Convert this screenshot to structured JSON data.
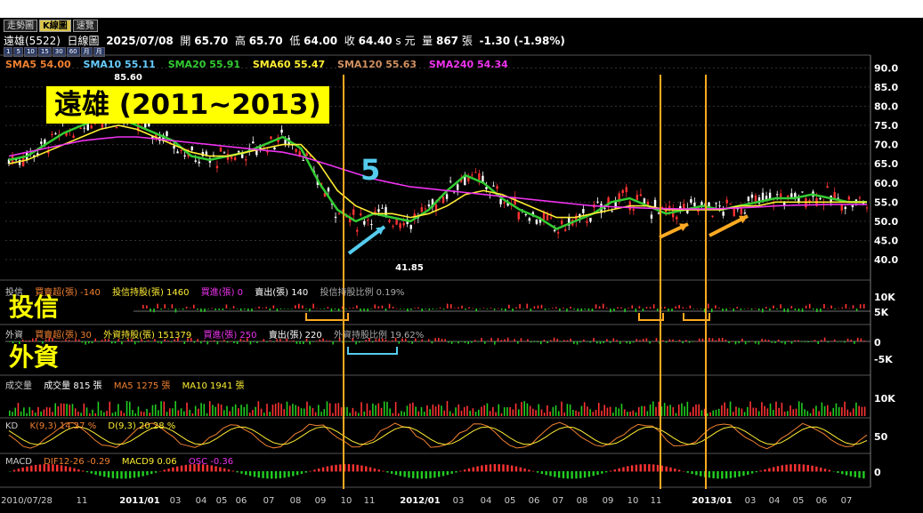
{
  "tabs": [
    {
      "label": "走勢圖",
      "active": false
    },
    {
      "label": "K線圖",
      "active": true
    },
    {
      "label": "速覽",
      "active": false
    }
  ],
  "periods": [
    "1",
    "5",
    "10",
    "15",
    "30",
    "60",
    "月",
    "月"
  ],
  "info": {
    "name": "遠雄(5522)",
    "chart": "日線圖",
    "date": "2025/07/08",
    "open_label": "開",
    "open": "65.70",
    "high_label": "高",
    "high": "65.70",
    "low_label": "低",
    "low": "64.00",
    "close_label": "收",
    "close": "64.40",
    "unit": "s 元",
    "vol_label": "量",
    "vol": "867",
    "vol_unit": "張",
    "change": "-1.30 (-1.98%)"
  },
  "overlay": {
    "title": "遠雄 (2011~2013)",
    "five": "5",
    "label_invest": "投信",
    "label_foreign": "外資"
  },
  "sma_legend": [
    {
      "text": "SMA5 54.00",
      "color": "#f08030"
    },
    {
      "text": "SMA10 55.11",
      "color": "#66ccff"
    },
    {
      "text": "SMA20 55.91",
      "color": "#33cc33"
    },
    {
      "text": "SMA60 55.47",
      "color": "#ffee33"
    },
    {
      "text": "SMA120 55.63",
      "color": "#d09060"
    },
    {
      "text": "SMA240 54.34",
      "color": "#ee33ee"
    }
  ],
  "invest_legend": [
    {
      "text": "投信",
      "color": "#ccc"
    },
    {
      "text": "買賣超(張) -140",
      "color": "#f08030"
    },
    {
      "text": "投信持股(張) 1460",
      "color": "#ffee33"
    },
    {
      "text": "買進(張) 0",
      "color": "#ee33ee"
    },
    {
      "text": "賣出(張) 140",
      "color": "#ffffff"
    },
    {
      "text": "投信持股比例 0.19%",
      "color": "#aaaaaa"
    }
  ],
  "foreign_legend": [
    {
      "text": "外資",
      "color": "#ccc"
    },
    {
      "text": "買賣超(張) 30",
      "color": "#f08030"
    },
    {
      "text": "外資持股(張) 151379",
      "color": "#ffee33"
    },
    {
      "text": "買進(張) 250",
      "color": "#ee33ee"
    },
    {
      "text": "賣出(張) 220",
      "color": "#ffffff"
    },
    {
      "text": "外資持股比例 19.62%",
      "color": "#aaaaaa"
    }
  ],
  "vol_legend": [
    {
      "text": "成交量",
      "color": "#ccc"
    },
    {
      "text": "成交量 815 張",
      "color": "#ffffff"
    },
    {
      "text": "MA5 1275 張",
      "color": "#f08030"
    },
    {
      "text": "MA10 1941 張",
      "color": "#ffee33"
    }
  ],
  "kd_legend": [
    {
      "text": "KD",
      "color": "#ccc"
    },
    {
      "text": "K(9,3) 14.27 %",
      "color": "#f08030"
    },
    {
      "text": "D(9,3) 20.28 %",
      "color": "#ffee33"
    }
  ],
  "macd_legend": [
    {
      "text": "MACD",
      "color": "#ccc"
    },
    {
      "text": "DIF12-26 -0.29",
      "color": "#f08030"
    },
    {
      "text": "MACD9 0.06",
      "color": "#ffee33"
    },
    {
      "text": "OSC -0.36",
      "color": "#ee33ee"
    }
  ],
  "chart_data": {
    "type": "line",
    "price_axis": {
      "ylim": [
        37,
        91
      ],
      "ticks": [
        "90.0",
        "85.0",
        "80.0",
        "75.0",
        "70.0",
        "65.0",
        "60.0",
        "55.0",
        "50.0",
        "45.0",
        "40.0"
      ]
    },
    "annotations": {
      "high": "85.60",
      "low": "41.85"
    },
    "invest_axis": [
      "10K",
      "5K"
    ],
    "foreign_axis": [
      "0",
      "-5K"
    ],
    "volume_axis": [
      "10K"
    ],
    "kd_axis": [
      "50"
    ],
    "macd_axis": [
      "0"
    ],
    "x_ticks": [
      {
        "label": "2010/07/28",
        "bold": false
      },
      {
        "label": "11",
        "bold": false
      },
      {
        "label": "2011/01",
        "bold": true
      },
      {
        "label": "03",
        "bold": false
      },
      {
        "label": "04",
        "bold": false
      },
      {
        "label": "05",
        "bold": false
      },
      {
        "label": "06",
        "bold": false
      },
      {
        "label": "07",
        "bold": false
      },
      {
        "label": "08",
        "bold": false
      },
      {
        "label": "09",
        "bold": false
      },
      {
        "label": "10",
        "bold": false
      },
      {
        "label": "11",
        "bold": false
      },
      {
        "label": "2012/01",
        "bold": true
      },
      {
        "label": "03",
        "bold": false
      },
      {
        "label": "04",
        "bold": false
      },
      {
        "label": "05",
        "bold": false
      },
      {
        "label": "06",
        "bold": false
      },
      {
        "label": "07",
        "bold": false
      },
      {
        "label": "08",
        "bold": false
      },
      {
        "label": "09",
        "bold": false
      },
      {
        "label": "10",
        "bold": false
      },
      {
        "label": "11",
        "bold": false
      },
      {
        "label": "2013/01",
        "bold": true
      },
      {
        "label": "03",
        "bold": false
      },
      {
        "label": "04",
        "bold": false
      },
      {
        "label": "05",
        "bold": false
      },
      {
        "label": "06",
        "bold": false
      },
      {
        "label": "07",
        "bold": false
      }
    ],
    "series": [
      {
        "name": "SMA20",
        "color": "#33cc33",
        "values": [
          66,
          67,
          70,
          73,
          75,
          77,
          77,
          75,
          73,
          71,
          67,
          66,
          67,
          68,
          70,
          72,
          69,
          60,
          53,
          50,
          52,
          51,
          50,
          53,
          58,
          62,
          60,
          56,
          53,
          51,
          48,
          50,
          52,
          55,
          56,
          54,
          52,
          53,
          54,
          53,
          54,
          55,
          56,
          56,
          57,
          56,
          55,
          55
        ]
      },
      {
        "name": "SMA60",
        "color": "#ffee33",
        "values": [
          65,
          66,
          68,
          70,
          72,
          74,
          75,
          74,
          72,
          70,
          68,
          67,
          67,
          68,
          69,
          70,
          70,
          65,
          58,
          54,
          52,
          52,
          51,
          52,
          54,
          57,
          58,
          57,
          55,
          53,
          51,
          51,
          52,
          53,
          54,
          54,
          53,
          53,
          53,
          53,
          54,
          54,
          55,
          55,
          55,
          55,
          55,
          55
        ]
      },
      {
        "name": "SMA240",
        "color": "#ee33ee",
        "values": [
          67,
          68,
          69,
          70,
          71,
          71.5,
          72,
          72,
          71.5,
          71,
          70.5,
          70,
          69.5,
          69,
          68.5,
          68,
          67,
          65.5,
          64,
          62.5,
          61,
          60,
          59,
          58.5,
          58,
          57.5,
          57,
          56.5,
          56,
          55.5,
          55,
          54.5,
          54,
          53.8,
          53.6,
          53.4,
          53.3,
          53.2,
          53.2,
          53.3,
          53.5,
          53.7,
          54,
          54.2,
          54.3,
          54.4,
          54.4,
          54.4
        ]
      }
    ]
  }
}
